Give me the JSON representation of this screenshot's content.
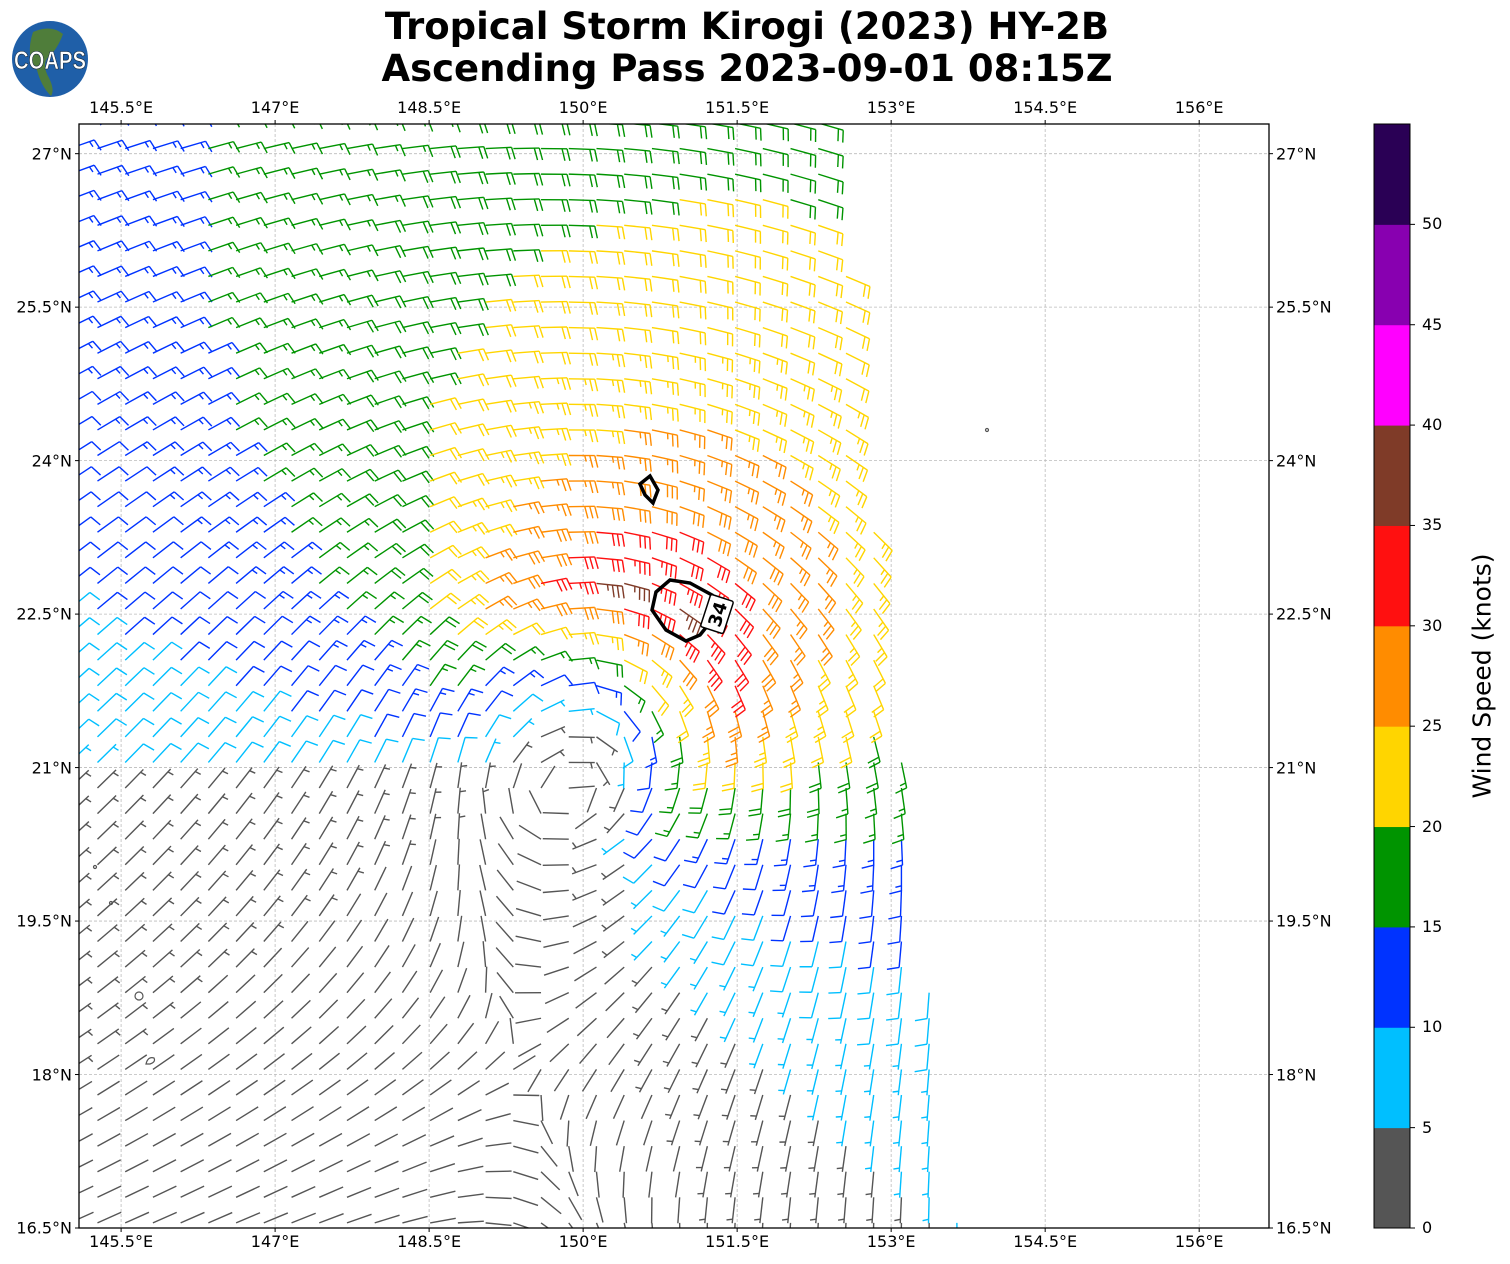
{
  "title": {
    "line1": "Tropical Storm Kirogi (2023) HY-2B",
    "line2": "Ascending Pass 2023-09-01 08:15Z"
  },
  "logo": {
    "text": "COAPS"
  },
  "map": {
    "lon_range": [
      145.09,
      156.68
    ],
    "lat_range": [
      16.5,
      27.29
    ],
    "lon_ticks": [
      145.5,
      147,
      148.5,
      150,
      151.5,
      153,
      154.5,
      156
    ],
    "lon_tick_labels": [
      "145.5°E",
      "147°E",
      "148.5°E",
      "150°E",
      "151.5°E",
      "153°E",
      "154.5°E",
      "156°E"
    ],
    "lat_ticks": [
      27,
      25.5,
      24,
      22.5,
      21,
      19.5,
      18,
      16.5
    ],
    "lat_tick_labels": [
      "27°N",
      "25.5°N",
      "24°N",
      "22.5°N",
      "21°N",
      "19.5°N",
      "18°N",
      "16.5°N"
    ],
    "contour_label": "34",
    "circulation_center": {
      "lon": 150.0,
      "lat": 21.5
    }
  },
  "colorbar": {
    "label": "Wind Speed (knots)",
    "range": [
      0,
      55
    ],
    "ticks": [
      "0",
      "5",
      "10",
      "15",
      "20",
      "25",
      "30",
      "35",
      "40",
      "45",
      "50"
    ],
    "colors": [
      "#555555",
      "#00bfff",
      "#0033ff",
      "#009400",
      "#ffd500",
      "#ff8c00",
      "#ff1010",
      "#7f3b28",
      "#ff00ff",
      "#8800b0",
      "#2a0055"
    ]
  }
}
